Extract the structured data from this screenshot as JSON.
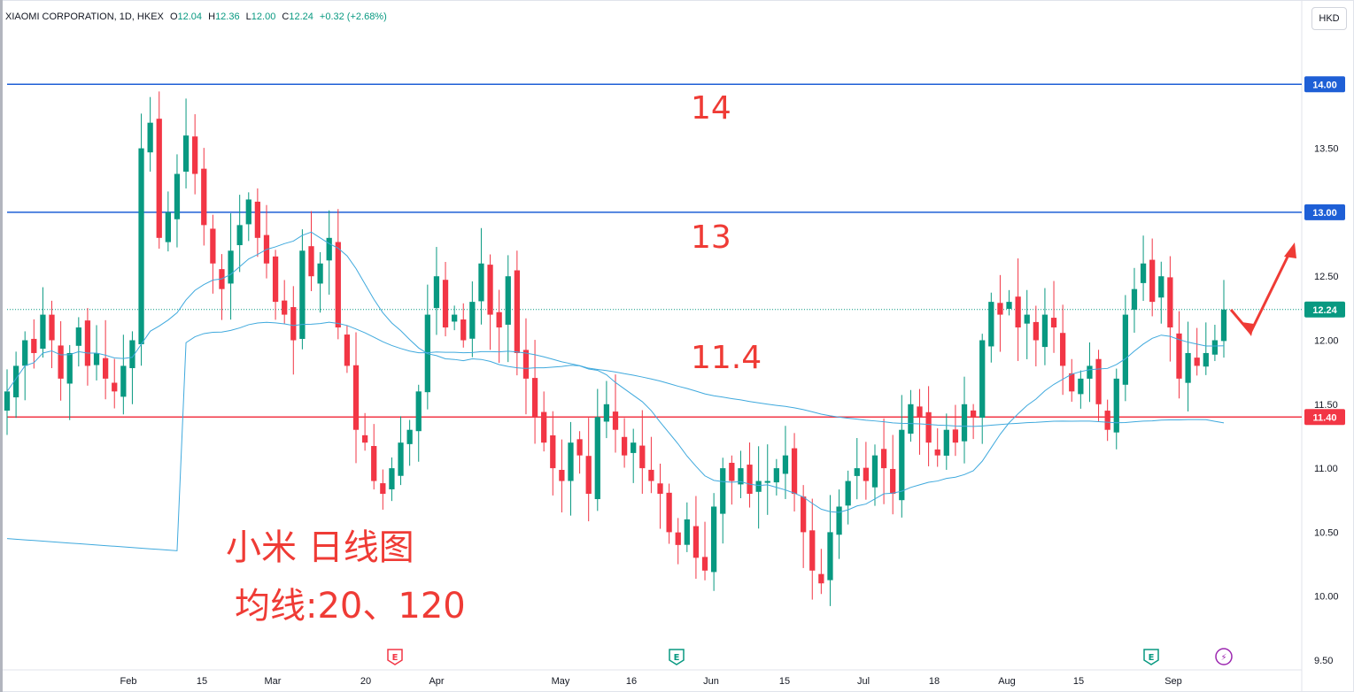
{
  "legend": {
    "symbol": "XIAOMI CORPORATION, 1D, HKEX",
    "o_label": "O",
    "o": "12.04",
    "h_label": "H",
    "h": "12.36",
    "l_label": "L",
    "l": "12.00",
    "c_label": "C",
    "c": "12.24",
    "change": "+0.32 (+2.68%)"
  },
  "currency": "HKD",
  "colors": {
    "up": "#089981",
    "down": "#f23645",
    "ma": "#3fa9dd",
    "resistance": "#1e5fd6",
    "support": "#f23645",
    "annotation": "#ef3b35"
  },
  "annotations": {
    "level14": "14",
    "level13": "13",
    "level11_4": "11.4",
    "title_line": "小米 日线图",
    "ma_line": "均线:20、120"
  },
  "chart_data": {
    "type": "candlestick",
    "title": "XIAOMI CORPORATION, 1D, HKEX",
    "ylim": [
      9.5,
      14.5
    ],
    "y_ticks": [
      "14.00",
      "13.50",
      "13.00",
      "12.50",
      "12.00",
      "11.50",
      "11.00",
      "10.50",
      "10.00",
      "9.50"
    ],
    "x_ticks": [
      "Feb",
      "15",
      "Mar",
      "20",
      "Apr",
      "May",
      "16",
      "Jun",
      "15",
      "Jul",
      "18",
      "Aug",
      "15",
      "Sep"
    ],
    "horizontal_lines": [
      {
        "value": 14.0,
        "label": "14.00",
        "color": "#1e5fd6"
      },
      {
        "value": 13.0,
        "label": "13.00",
        "color": "#1e5fd6"
      },
      {
        "value": 11.4,
        "label": "11.40",
        "color": "#f23645"
      }
    ],
    "last_price": {
      "value": 12.24,
      "label": "12.24"
    },
    "moving_averages": [
      20,
      120
    ],
    "events": [
      "E",
      "E",
      "E",
      "⚡"
    ],
    "candles_approx_close": [
      11.6,
      11.8,
      12.0,
      11.9,
      12.2,
      12.0,
      11.7,
      11.9,
      12.1,
      11.8,
      11.9,
      11.7,
      11.6,
      11.8,
      12.0,
      13.5,
      13.7,
      12.8,
      13.0,
      13.3,
      13.6,
      13.3,
      12.9,
      12.6,
      12.4,
      12.7,
      12.9,
      13.1,
      12.8,
      12.6,
      12.3,
      12.2,
      12.0,
      12.7,
      12.5,
      12.6,
      12.8,
      12.1,
      11.8,
      11.3,
      11.2,
      10.9,
      10.8,
      11.0,
      11.2,
      11.3,
      11.6,
      12.2,
      12.5,
      12.1,
      12.2,
      12.0,
      12.3,
      12.6,
      12.2,
      12.1,
      12.5,
      11.9,
      11.7,
      11.4,
      11.2,
      11.0,
      10.9,
      11.2,
      11.1,
      10.8,
      11.4,
      11.5,
      11.3,
      11.1,
      11.2,
      11.0,
      10.9,
      10.8,
      10.5,
      10.4,
      10.6,
      10.3,
      10.2,
      10.7,
      11.0,
      10.9,
      11.0,
      10.8,
      10.9,
      10.9,
      11.0,
      11.1,
      10.8,
      10.5,
      10.2,
      10.1,
      10.5,
      10.7,
      10.9,
      11.0,
      10.9,
      11.1,
      11.0,
      10.8,
      11.3,
      11.5,
      11.4,
      11.2,
      11.1,
      11.3,
      11.2,
      11.5,
      11.4,
      12.0,
      12.3,
      12.2,
      12.3,
      12.1,
      12.2,
      12.0,
      12.2,
      12.1,
      11.8,
      11.6,
      11.7,
      11.8,
      11.5,
      11.3,
      11.7,
      12.2,
      12.4,
      12.6,
      12.3,
      12.5,
      12.1,
      11.7,
      11.9,
      11.8,
      11.9,
      12.0,
      12.24
    ]
  },
  "x_axis_events": {
    "e1": "E",
    "e2": "E",
    "e3": "E",
    "e4": "⚡"
  }
}
